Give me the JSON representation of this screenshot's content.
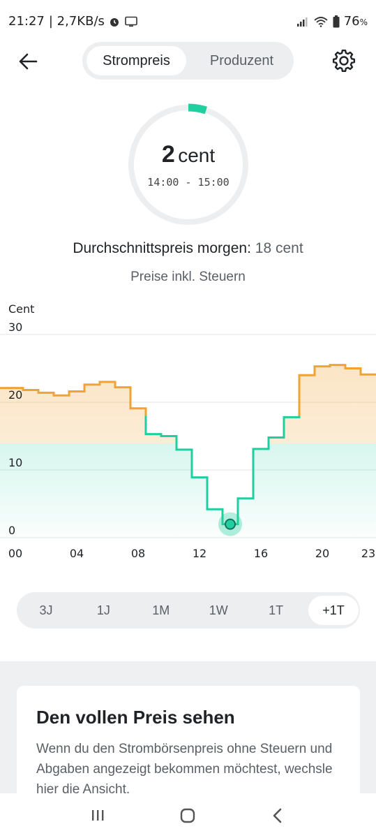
{
  "status_bar": {
    "time": "21:27",
    "speed": "| 2,7KB/s",
    "battery": "76",
    "battery_unit": "%"
  },
  "header": {
    "tabs": [
      {
        "label": "Strompreis",
        "active": true
      },
      {
        "label": "Produzent",
        "active": false
      }
    ]
  },
  "gauge": {
    "price_value": "2",
    "price_unit": "cent",
    "time_range": "14:00 - 15:00",
    "fill_fraction": 0.05,
    "accent_color": "#1fcf9f"
  },
  "summary": {
    "avg_label": "Durchschnittspreis morgen:",
    "avg_value": "18 cent",
    "tax_note": "Preise inkl. Steuern"
  },
  "chart_data": {
    "type": "line",
    "ylabel": "Cent",
    "ylim": [
      0,
      30
    ],
    "yticks": [
      "30",
      "20",
      "10",
      "0"
    ],
    "xticks": [
      "00",
      "04",
      "08",
      "12",
      "16",
      "20",
      "23"
    ],
    "x_hours": [
      0,
      1,
      2,
      3,
      4,
      5,
      6,
      7,
      8,
      9,
      10,
      11,
      12,
      13,
      14,
      15,
      16,
      17,
      18,
      19,
      20,
      21,
      22,
      23
    ],
    "values": [
      22.1,
      21.8,
      21.4,
      21.0,
      21.6,
      22.6,
      23.0,
      22.2,
      19.1,
      15.3,
      15.0,
      13.0,
      8.9,
      4.2,
      2.0,
      5.8,
      13.1,
      14.8,
      17.8,
      24.0,
      25.3,
      25.5,
      25.0,
      24.1
    ],
    "highlight_hour": 14,
    "threshold": 18,
    "colors": {
      "above": "#f0a233",
      "below": "#1fcf9f",
      "grid": "#e3e6e8"
    }
  },
  "range_selector": {
    "options": [
      "3J",
      "1J",
      "1M",
      "1W",
      "1T",
      "+1T"
    ],
    "active": "+1T"
  },
  "card": {
    "title": "Den vollen Preis sehen",
    "body": "Wenn du den Strombörsenpreis ohne Steuern und Abgaben angezeigt bekommen möchtest, wechsle hier die Ansicht."
  },
  "navbar": {
    "icons": [
      "recents-icon",
      "home-icon",
      "back-nav-icon"
    ]
  }
}
